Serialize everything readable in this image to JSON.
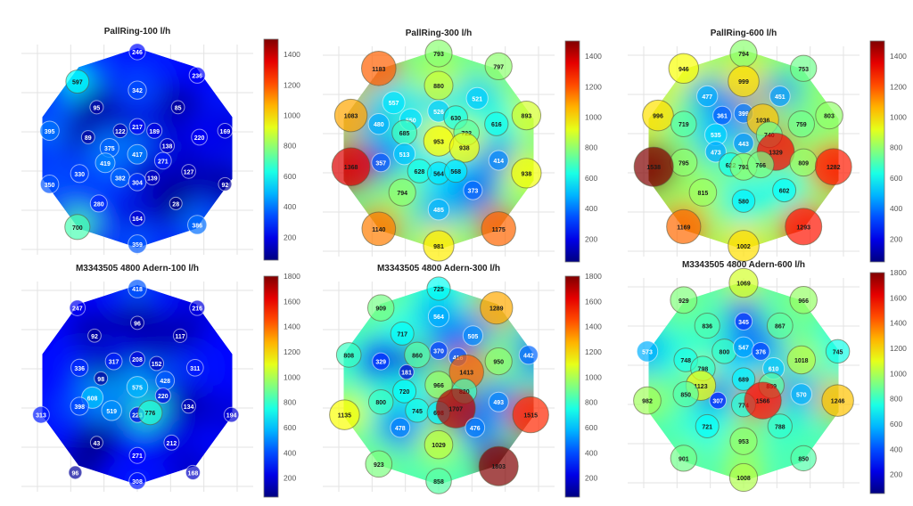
{
  "chart_data": [
    {
      "type": "scatter",
      "title": "PallRing-100 l/h",
      "colorbar": {
        "range": [
          50,
          1500
        ],
        "ticks": [
          200,
          400,
          600,
          800,
          1000,
          1200,
          1400
        ]
      },
      "grid": true,
      "points": [
        {
          "x": 50,
          "y": 95,
          "v": 246
        },
        {
          "x": 22,
          "y": 81,
          "v": 597
        },
        {
          "x": 78,
          "y": 84,
          "v": 236
        },
        {
          "x": 50,
          "y": 77,
          "v": 342
        },
        {
          "x": 31,
          "y": 69,
          "v": 95
        },
        {
          "x": 69,
          "y": 69,
          "v": 85
        },
        {
          "x": 9,
          "y": 58,
          "v": 395
        },
        {
          "x": 50,
          "y": 60,
          "v": 217
        },
        {
          "x": 42,
          "y": 58,
          "v": 122
        },
        {
          "x": 58,
          "y": 58,
          "v": 189
        },
        {
          "x": 91,
          "y": 58,
          "v": 169
        },
        {
          "x": 27,
          "y": 55,
          "v": 89
        },
        {
          "x": 79,
          "y": 55,
          "v": 220
        },
        {
          "x": 37,
          "y": 50,
          "v": 375
        },
        {
          "x": 64,
          "y": 51,
          "v": 138
        },
        {
          "x": 50,
          "y": 47,
          "v": 417
        },
        {
          "x": 35,
          "y": 43,
          "v": 419
        },
        {
          "x": 62,
          "y": 44,
          "v": 271
        },
        {
          "x": 23,
          "y": 38,
          "v": 330
        },
        {
          "x": 42,
          "y": 36,
          "v": 382
        },
        {
          "x": 50,
          "y": 34,
          "v": 304
        },
        {
          "x": 57,
          "y": 36,
          "v": 139
        },
        {
          "x": 74,
          "y": 39,
          "v": 127
        },
        {
          "x": 9,
          "y": 33,
          "v": 350
        },
        {
          "x": 91,
          "y": 33,
          "v": 92
        },
        {
          "x": 32,
          "y": 24,
          "v": 280
        },
        {
          "x": 68,
          "y": 24,
          "v": 28
        },
        {
          "x": 50,
          "y": 17,
          "v": 164
        },
        {
          "x": 22,
          "y": 13,
          "v": 700
        },
        {
          "x": 78,
          "y": 14,
          "v": 386
        },
        {
          "x": 50,
          "y": 5,
          "v": 359
        }
      ]
    },
    {
      "type": "scatter",
      "title": "PallRing-300 l/h",
      "colorbar": {
        "range": [
          50,
          1500
        ],
        "ticks": [
          200,
          400,
          600,
          800,
          1000,
          1200,
          1400
        ]
      },
      "grid": true,
      "points": [
        {
          "x": 50,
          "y": 95,
          "v": 793
        },
        {
          "x": 22,
          "y": 88,
          "v": 1183
        },
        {
          "x": 78,
          "y": 89,
          "v": 797
        },
        {
          "x": 50,
          "y": 80,
          "v": 880
        },
        {
          "x": 29,
          "y": 72,
          "v": 557
        },
        {
          "x": 68,
          "y": 74,
          "v": 521
        },
        {
          "x": 9,
          "y": 66,
          "v": 1083
        },
        {
          "x": 50,
          "y": 68,
          "v": 526
        },
        {
          "x": 37,
          "y": 64,
          "v": 550
        },
        {
          "x": 58,
          "y": 65,
          "v": 630
        },
        {
          "x": 91,
          "y": 66,
          "v": 893
        },
        {
          "x": 22,
          "y": 62,
          "v": 480
        },
        {
          "x": 77,
          "y": 62,
          "v": 616
        },
        {
          "x": 34,
          "y": 58,
          "v": 685
        },
        {
          "x": 63,
          "y": 58,
          "v": 722
        },
        {
          "x": 50,
          "y": 54,
          "v": 953
        },
        {
          "x": 34,
          "y": 48,
          "v": 513
        },
        {
          "x": 62,
          "y": 51,
          "v": 938
        },
        {
          "x": 23,
          "y": 44,
          "v": 357
        },
        {
          "x": 78,
          "y": 45,
          "v": 414
        },
        {
          "x": 41,
          "y": 40,
          "v": 628
        },
        {
          "x": 50,
          "y": 39,
          "v": 564
        },
        {
          "x": 58,
          "y": 40,
          "v": 568
        },
        {
          "x": 9,
          "y": 42,
          "v": 1368
        },
        {
          "x": 91,
          "y": 39,
          "v": 938
        },
        {
          "x": 33,
          "y": 30,
          "v": 794
        },
        {
          "x": 66,
          "y": 31,
          "v": 373
        },
        {
          "x": 50,
          "y": 22,
          "v": 485
        },
        {
          "x": 22,
          "y": 13,
          "v": 1140
        },
        {
          "x": 78,
          "y": 13,
          "v": 1175
        },
        {
          "x": 50,
          "y": 5,
          "v": 981
        }
      ]
    },
    {
      "type": "scatter",
      "title": "PallRing-600 l/h",
      "colorbar": {
        "range": [
          50,
          1500
        ],
        "ticks": [
          200,
          400,
          600,
          800,
          1000,
          1200,
          1400
        ]
      },
      "grid": true,
      "points": [
        {
          "x": 50,
          "y": 95,
          "v": 794
        },
        {
          "x": 22,
          "y": 88,
          "v": 946
        },
        {
          "x": 78,
          "y": 88,
          "v": 753
        },
        {
          "x": 50,
          "y": 82,
          "v": 999
        },
        {
          "x": 33,
          "y": 75,
          "v": 477
        },
        {
          "x": 67,
          "y": 75,
          "v": 451
        },
        {
          "x": 10,
          "y": 66,
          "v": 996
        },
        {
          "x": 40,
          "y": 66,
          "v": 361
        },
        {
          "x": 50,
          "y": 67,
          "v": 399
        },
        {
          "x": 59,
          "y": 64,
          "v": 1036
        },
        {
          "x": 90,
          "y": 66,
          "v": 803
        },
        {
          "x": 22,
          "y": 62,
          "v": 719
        },
        {
          "x": 77,
          "y": 62,
          "v": 759
        },
        {
          "x": 37,
          "y": 57,
          "v": 535
        },
        {
          "x": 62,
          "y": 57,
          "v": 740
        },
        {
          "x": 50,
          "y": 53,
          "v": 443
        },
        {
          "x": 37,
          "y": 49,
          "v": 473
        },
        {
          "x": 65,
          "y": 49,
          "v": 1329
        },
        {
          "x": 22,
          "y": 44,
          "v": 795
        },
        {
          "x": 44,
          "y": 43,
          "v": 622
        },
        {
          "x": 50,
          "y": 42,
          "v": 793
        },
        {
          "x": 58,
          "y": 43,
          "v": 766
        },
        {
          "x": 78,
          "y": 44,
          "v": 809
        },
        {
          "x": 8,
          "y": 42,
          "v": 1538
        },
        {
          "x": 92,
          "y": 42,
          "v": 1282
        },
        {
          "x": 31,
          "y": 30,
          "v": 815
        },
        {
          "x": 69,
          "y": 31,
          "v": 602
        },
        {
          "x": 50,
          "y": 26,
          "v": 580
        },
        {
          "x": 22,
          "y": 14,
          "v": 1169
        },
        {
          "x": 78,
          "y": 14,
          "v": 1293
        },
        {
          "x": 50,
          "y": 5,
          "v": 1002
        }
      ]
    },
    {
      "type": "scatter",
      "title": "M3343505 4800 Adern-100 l/h",
      "colorbar": {
        "range": [
          50,
          1800
        ],
        "ticks": [
          200,
          400,
          600,
          800,
          1000,
          1200,
          1400,
          1600,
          1800
        ]
      },
      "grid": true,
      "points": [
        {
          "x": 50,
          "y": 95,
          "v": 418
        },
        {
          "x": 22,
          "y": 86,
          "v": 247
        },
        {
          "x": 78,
          "y": 86,
          "v": 216
        },
        {
          "x": 50,
          "y": 79,
          "v": 96
        },
        {
          "x": 30,
          "y": 73,
          "v": 92
        },
        {
          "x": 70,
          "y": 73,
          "v": 117
        },
        {
          "x": 39,
          "y": 61,
          "v": 317
        },
        {
          "x": 50,
          "y": 62,
          "v": 208
        },
        {
          "x": 59,
          "y": 60,
          "v": 152
        },
        {
          "x": 23,
          "y": 58,
          "v": 336
        },
        {
          "x": 77,
          "y": 58,
          "v": 311
        },
        {
          "x": 33,
          "y": 53,
          "v": 98
        },
        {
          "x": 63,
          "y": 52,
          "v": 428
        },
        {
          "x": 50,
          "y": 49,
          "v": 575
        },
        {
          "x": 29,
          "y": 44,
          "v": 608
        },
        {
          "x": 62,
          "y": 45,
          "v": 220
        },
        {
          "x": 23,
          "y": 40,
          "v": 398
        },
        {
          "x": 38,
          "y": 38,
          "v": 519
        },
        {
          "x": 50,
          "y": 36,
          "v": 223
        },
        {
          "x": 56,
          "y": 37,
          "v": 776
        },
        {
          "x": 74,
          "y": 40,
          "v": 134
        },
        {
          "x": 5,
          "y": 36,
          "v": 313
        },
        {
          "x": 94,
          "y": 36,
          "v": 194
        },
        {
          "x": 31,
          "y": 23,
          "v": 43
        },
        {
          "x": 66,
          "y": 23,
          "v": 212
        },
        {
          "x": 50,
          "y": 17,
          "v": 271
        },
        {
          "x": 21,
          "y": 9,
          "v": 96
        },
        {
          "x": 76,
          "y": 9,
          "v": 168
        },
        {
          "x": 50,
          "y": 5,
          "v": 308
        }
      ]
    },
    {
      "type": "scatter",
      "title": "M3343505 4800 Adern-300 l/h",
      "colorbar": {
        "range": [
          50,
          1800
        ],
        "ticks": [
          200,
          400,
          600,
          800,
          1000,
          1200,
          1400,
          1600,
          1800
        ]
      },
      "grid": true,
      "points": [
        {
          "x": 50,
          "y": 95,
          "v": 725
        },
        {
          "x": 23,
          "y": 86,
          "v": 909
        },
        {
          "x": 77,
          "y": 86,
          "v": 1289
        },
        {
          "x": 50,
          "y": 82,
          "v": 564
        },
        {
          "x": 33,
          "y": 74,
          "v": 717
        },
        {
          "x": 66,
          "y": 73,
          "v": 505
        },
        {
          "x": 8,
          "y": 64,
          "v": 808
        },
        {
          "x": 50,
          "y": 66,
          "v": 370
        },
        {
          "x": 40,
          "y": 64,
          "v": 860
        },
        {
          "x": 59,
          "y": 63,
          "v": 416
        },
        {
          "x": 92,
          "y": 64,
          "v": 442
        },
        {
          "x": 23,
          "y": 61,
          "v": 329
        },
        {
          "x": 78,
          "y": 61,
          "v": 950
        },
        {
          "x": 35,
          "y": 56,
          "v": 181
        },
        {
          "x": 63,
          "y": 56,
          "v": 1413
        },
        {
          "x": 50,
          "y": 50,
          "v": 966
        },
        {
          "x": 34,
          "y": 47,
          "v": 720
        },
        {
          "x": 62,
          "y": 47,
          "v": 820
        },
        {
          "x": 23,
          "y": 42,
          "v": 800
        },
        {
          "x": 40,
          "y": 38,
          "v": 745
        },
        {
          "x": 50,
          "y": 37,
          "v": 698
        },
        {
          "x": 58,
          "y": 39,
          "v": 1707
        },
        {
          "x": 78,
          "y": 42,
          "v": 493
        },
        {
          "x": 6,
          "y": 36,
          "v": 1135
        },
        {
          "x": 93,
          "y": 36,
          "v": 1515
        },
        {
          "x": 32,
          "y": 30,
          "v": 478
        },
        {
          "x": 67,
          "y": 30,
          "v": 476
        },
        {
          "x": 50,
          "y": 22,
          "v": 1029
        },
        {
          "x": 22,
          "y": 13,
          "v": 923
        },
        {
          "x": 78,
          "y": 12,
          "v": 1803
        },
        {
          "x": 50,
          "y": 5,
          "v": 858
        }
      ]
    },
    {
      "type": "scatter",
      "title": "M3343505 4800 Adern-600 l/h",
      "colorbar": {
        "range": [
          50,
          1800
        ],
        "ticks": [
          200,
          400,
          600,
          800,
          1000,
          1200,
          1400,
          1600,
          1800
        ]
      },
      "grid": true,
      "points": [
        {
          "x": 50,
          "y": 96,
          "v": 1069
        },
        {
          "x": 22,
          "y": 88,
          "v": 929
        },
        {
          "x": 78,
          "y": 88,
          "v": 966
        },
        {
          "x": 50,
          "y": 78,
          "v": 345
        },
        {
          "x": 33,
          "y": 76,
          "v": 836
        },
        {
          "x": 67,
          "y": 76,
          "v": 867
        },
        {
          "x": 5,
          "y": 64,
          "v": 573
        },
        {
          "x": 41,
          "y": 64,
          "v": 800
        },
        {
          "x": 50,
          "y": 66,
          "v": 547
        },
        {
          "x": 58,
          "y": 64,
          "v": 376
        },
        {
          "x": 94,
          "y": 64,
          "v": 745
        },
        {
          "x": 23,
          "y": 60,
          "v": 748
        },
        {
          "x": 77,
          "y": 60,
          "v": 1018
        },
        {
          "x": 31,
          "y": 56,
          "v": 798
        },
        {
          "x": 64,
          "y": 56,
          "v": 610
        },
        {
          "x": 50,
          "y": 51,
          "v": 689
        },
        {
          "x": 30,
          "y": 48,
          "v": 1123
        },
        {
          "x": 63,
          "y": 48,
          "v": 859
        },
        {
          "x": 23,
          "y": 44,
          "v": 850
        },
        {
          "x": 38,
          "y": 41,
          "v": 307
        },
        {
          "x": 50,
          "y": 39,
          "v": 774
        },
        {
          "x": 59,
          "y": 41,
          "v": 1566
        },
        {
          "x": 77,
          "y": 44,
          "v": 570
        },
        {
          "x": 5,
          "y": 41,
          "v": 982
        },
        {
          "x": 94,
          "y": 41,
          "v": 1246
        },
        {
          "x": 33,
          "y": 29,
          "v": 721
        },
        {
          "x": 67,
          "y": 29,
          "v": 788
        },
        {
          "x": 50,
          "y": 22,
          "v": 953
        },
        {
          "x": 22,
          "y": 14,
          "v": 901
        },
        {
          "x": 78,
          "y": 14,
          "v": 850
        },
        {
          "x": 50,
          "y": 5,
          "v": 1008
        }
      ]
    }
  ]
}
